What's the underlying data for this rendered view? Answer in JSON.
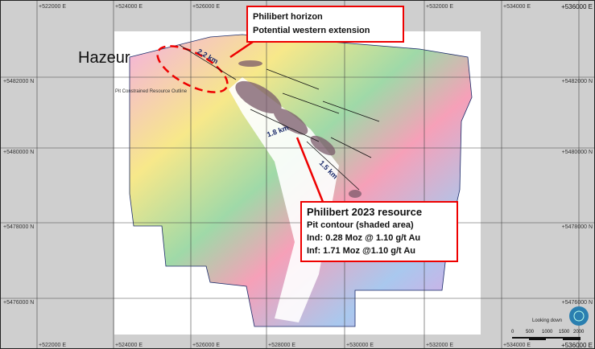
{
  "easting_labels": [
    "+522000 E",
    "+524000 E",
    "+526000 E",
    "+528000 E",
    "+530000 E",
    "+532000 E",
    "+534000 E",
    "+536000 E"
  ],
  "northing_labels": [
    "+5482000 N",
    "+5480000 N",
    "+5478000 N",
    "+5476000 N"
  ],
  "callout_top": {
    "line1": "Philibert horizon",
    "line2": "Potential western extension"
  },
  "callout_bottom": {
    "title": "Philibert 2023 resource",
    "line1": "Pit contour (shaded area)",
    "line2": "Ind: 0.28 Moz @ 1.10 g/t Au",
    "line3": "Inf:  1.71 Moz @1.10 g/t Au"
  },
  "place_label": "Hazeur",
  "pit_label": "Pit Constrained Resource Outline",
  "distances": [
    "2.2 km",
    "1.8 km",
    "1.5 km"
  ],
  "view_label": "Looking down",
  "scale_labels": [
    "0",
    "500",
    "1000",
    "1500",
    "2000"
  ],
  "colors": {
    "callout_border": "#e00000",
    "distance_text": "#1a2a6a"
  }
}
